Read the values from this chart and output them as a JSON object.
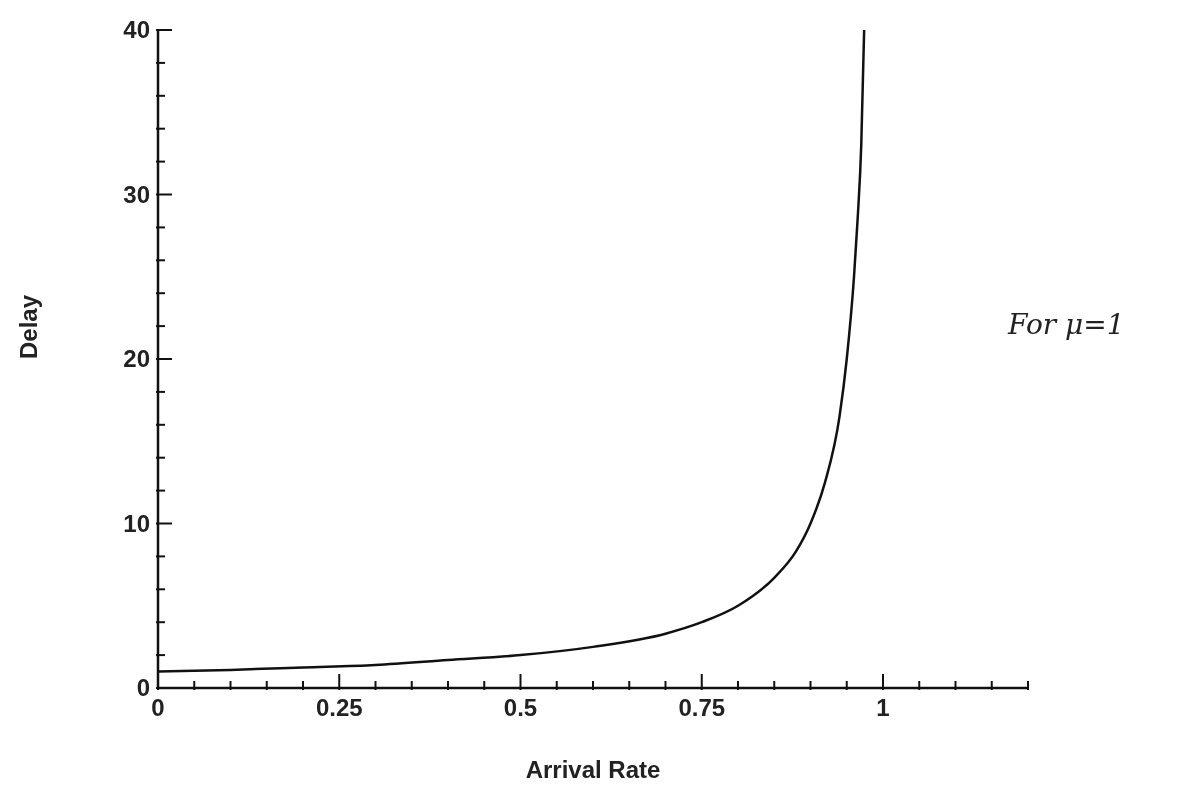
{
  "chart_data": {
    "type": "line",
    "xlabel": "Arrival Rate",
    "ylabel": "Delay",
    "annotations": [
      "For μ=1"
    ],
    "x": [
      0,
      0.1,
      0.2,
      0.3,
      0.4,
      0.5,
      0.6,
      0.7,
      0.75,
      0.8,
      0.85,
      0.88,
      0.9,
      0.92,
      0.94,
      0.95,
      0.96,
      0.965,
      0.97,
      0.974
    ],
    "series": [
      {
        "color": "#111111",
        "values": [
          1,
          1.1,
          1.25,
          1.4,
          1.7,
          2,
          2.5,
          3.3,
          4,
          5,
          6.7,
          8.3,
          10,
          12.5,
          16.5,
          20,
          25,
          28.5,
          33,
          40
        ]
      }
    ],
    "xlim": [
      0,
      1.2
    ],
    "xticks": [
      0,
      {
        "value": 0.05,
        "label": null
      },
      {
        "value": 0.1,
        "label": null
      },
      {
        "value": 0.15,
        "label": null
      },
      {
        "value": 0.2,
        "label": null
      },
      0.25,
      {
        "value": 0.3,
        "label": null
      },
      {
        "value": 0.35,
        "label": null
      },
      {
        "value": 0.4,
        "label": null
      },
      {
        "value": 0.45,
        "label": null
      },
      0.5,
      {
        "value": 0.55,
        "label": null
      },
      {
        "value": 0.6,
        "label": null
      },
      {
        "value": 0.65,
        "label": null
      },
      {
        "value": 0.7,
        "label": null
      },
      0.75,
      {
        "value": 0.8,
        "label": null
      },
      {
        "value": 0.85,
        "label": null
      },
      {
        "value": 0.9,
        "label": null
      },
      {
        "value": 0.95,
        "label": null
      },
      1,
      {
        "value": 1.05,
        "label": null
      },
      {
        "value": 1.1,
        "label": null
      },
      {
        "value": 1.15,
        "label": null
      },
      {
        "value": 1.2,
        "label": null
      }
    ],
    "ylim": [
      0,
      40
    ],
    "yticks": [
      0,
      {
        "value": 2,
        "label": null
      },
      {
        "value": 4,
        "label": null
      },
      {
        "value": 6,
        "label": null
      },
      {
        "value": 8,
        "label": null
      },
      10,
      {
        "value": 12,
        "label": null
      },
      {
        "value": 14,
        "label": null
      },
      {
        "value": 16,
        "label": null
      },
      {
        "value": 18,
        "label": null
      },
      20,
      {
        "value": 22,
        "label": null
      },
      {
        "value": 24,
        "label": null
      },
      {
        "value": 26,
        "label": null
      },
      {
        "value": 28,
        "label": null
      },
      30,
      {
        "value": 32,
        "label": null
      },
      {
        "value": 34,
        "label": null
      },
      {
        "value": 36,
        "label": null
      },
      {
        "value": 38,
        "label": null
      },
      40
    ],
    "grid": false,
    "legend": false,
    "marker": "none",
    "line_style": "solid"
  }
}
